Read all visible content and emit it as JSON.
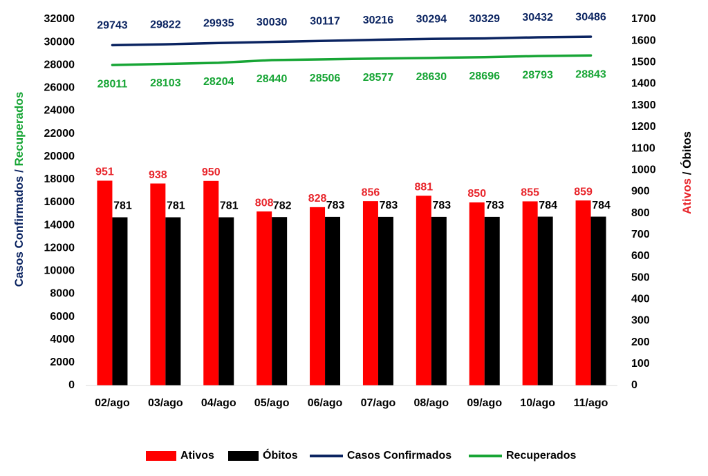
{
  "chart_data": {
    "type": "bar",
    "categories": [
      "02/ago",
      "03/ago",
      "04/ago",
      "05/ago",
      "06/ago",
      "07/ago",
      "08/ago",
      "09/ago",
      "10/ago",
      "11/ago"
    ],
    "series": [
      {
        "name": "Ativos",
        "type": "bar",
        "axis": "right",
        "color": "#ff0000",
        "label_color": "#e8252b",
        "values": [
          951,
          938,
          950,
          808,
          828,
          856,
          881,
          850,
          855,
          859
        ]
      },
      {
        "name": "Óbitos",
        "type": "bar",
        "axis": "right",
        "color": "#000000",
        "label_color": "#000000",
        "values": [
          781,
          781,
          781,
          782,
          783,
          783,
          783,
          783,
          784,
          784
        ]
      },
      {
        "name": "Casos Confirmados",
        "type": "line",
        "axis": "left",
        "color": "#0b2461",
        "label_color": "#0b2461",
        "values": [
          29743,
          29822,
          29935,
          30030,
          30117,
          30216,
          30294,
          30329,
          30432,
          30486
        ]
      },
      {
        "name": "Recuperados",
        "type": "line",
        "axis": "left",
        "color": "#17a535",
        "label_color": "#17a535",
        "values": [
          28011,
          28103,
          28204,
          28440,
          28506,
          28577,
          28630,
          28696,
          28793,
          28843
        ]
      }
    ],
    "left_axis": {
      "ylim": [
        0,
        32000
      ],
      "ticks": [
        "0",
        "2000",
        "4000",
        "6000",
        "8000",
        "10000",
        "12000",
        "14000",
        "16000",
        "18000",
        "20000",
        "22000",
        "24000",
        "26000",
        "28000",
        "30000",
        "32000"
      ],
      "title_part1": "Casos Confirmados",
      "title_sep": " / ",
      "title_part2": "Recuperados"
    },
    "right_axis": {
      "ylim": [
        0,
        1700
      ],
      "ticks": [
        "0",
        "100",
        "200",
        "300",
        "400",
        "500",
        "600",
        "700",
        "800",
        "900",
        "1000",
        "1100",
        "1200",
        "1300",
        "1400",
        "1500",
        "1600",
        "1700"
      ],
      "title_part1": "Ativos",
      "title_sep": " / ",
      "title_part2": "Óbitos"
    },
    "legend_position": "bottom",
    "grid": false
  }
}
